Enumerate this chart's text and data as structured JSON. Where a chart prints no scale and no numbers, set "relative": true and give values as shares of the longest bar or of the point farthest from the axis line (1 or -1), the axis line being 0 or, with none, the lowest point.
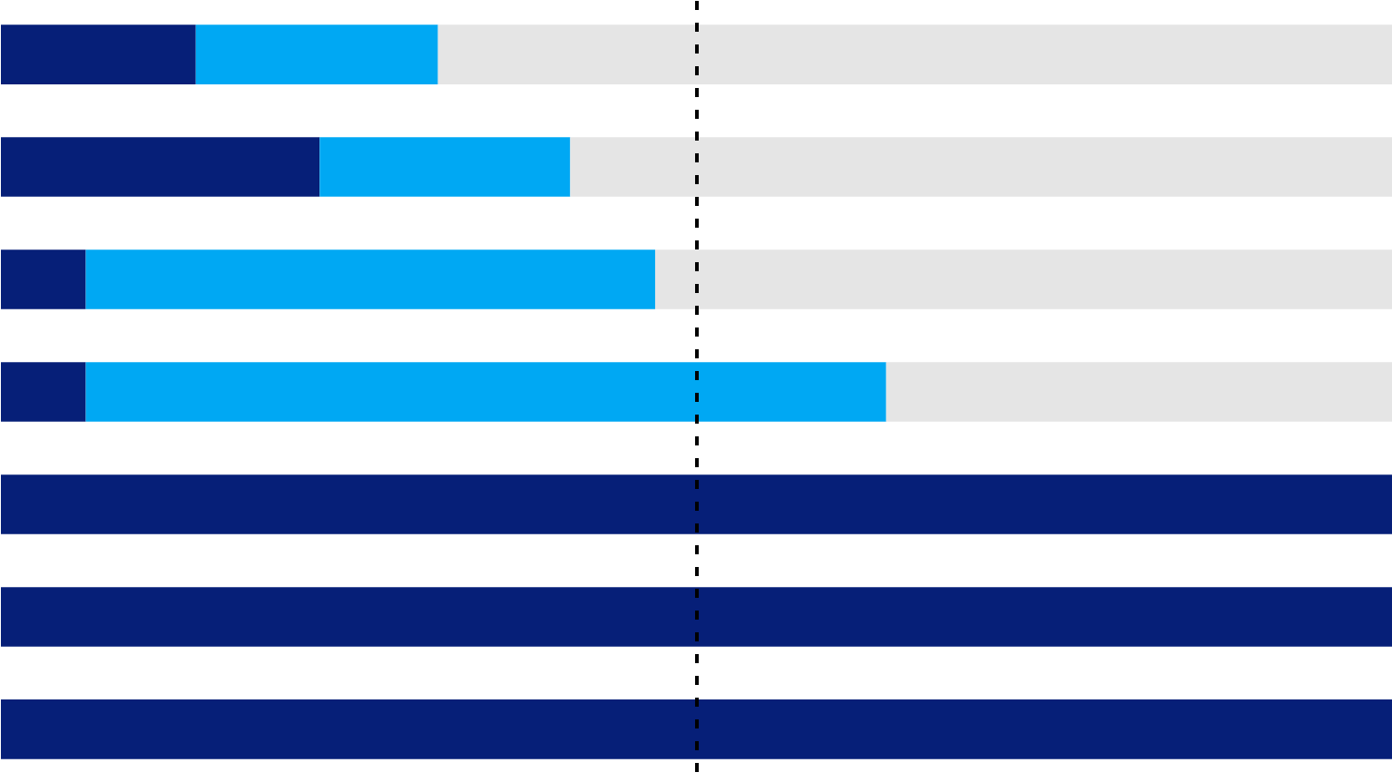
{
  "chart_data": {
    "type": "bar",
    "orientation": "horizontal",
    "stacked": true,
    "relative": true,
    "tick_labels": false,
    "categories": [
      null,
      null,
      null,
      null,
      null,
      null,
      null
    ],
    "series": [
      {
        "color": "#061f78",
        "values": [
          0.14,
          0.229,
          0.061,
          0.061,
          1,
          1,
          1
        ]
      },
      {
        "color": "#00a8f3",
        "values": [
          0.174,
          0.18,
          0.409,
          0.575,
          null,
          null,
          null
        ]
      },
      {
        "color": "#e5e5e5",
        "values": [
          0.686,
          0.591,
          0.53,
          0.364,
          null,
          null,
          null
        ]
      }
    ],
    "ref_lines": [
      {
        "axis": "x",
        "value": 0.5,
        "color": "#000000",
        "line_style": "dashed"
      }
    ]
  }
}
